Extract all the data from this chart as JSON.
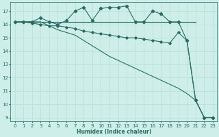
{
  "xlabel": "Humidex (Indice chaleur)",
  "bg_color": "#ceeee9",
  "grid_color": "#b8ddd8",
  "line_color": "#2a6b60",
  "xlim": [
    -0.5,
    23.5
  ],
  "ylim": [
    8.7,
    17.7
  ],
  "yticks": [
    9,
    10,
    11,
    12,
    13,
    14,
    15,
    16,
    17
  ],
  "xticks": [
    0,
    1,
    2,
    3,
    4,
    5,
    6,
    7,
    8,
    9,
    10,
    11,
    12,
    13,
    14,
    15,
    16,
    17,
    18,
    19,
    20,
    21,
    22,
    23
  ],
  "series1_x": [
    0,
    1,
    2,
    3,
    4,
    5,
    6,
    7,
    8,
    9,
    10,
    11,
    12,
    13,
    14,
    15,
    16,
    17,
    18,
    19,
    20,
    21,
    22,
    23
  ],
  "series1_y": [
    16.2,
    16.2,
    16.2,
    16.5,
    16.2,
    16.0,
    16.3,
    17.0,
    17.3,
    16.3,
    17.2,
    17.3,
    17.3,
    17.4,
    16.2,
    16.2,
    17.0,
    16.8,
    16.2,
    16.2,
    14.8,
    10.3,
    9.0,
    9.0
  ],
  "series2_x": [
    0,
    1,
    2,
    3,
    4,
    5,
    6,
    7,
    8,
    9,
    10,
    11,
    12,
    13,
    14,
    15,
    16,
    17,
    18,
    19,
    20,
    21
  ],
  "series2_y": [
    16.2,
    16.2,
    16.2,
    16.2,
    16.2,
    16.2,
    16.2,
    16.2,
    16.2,
    16.2,
    16.2,
    16.2,
    16.2,
    16.2,
    16.2,
    16.2,
    16.2,
    16.2,
    16.2,
    16.2,
    16.2,
    16.2
  ],
  "series3_x": [
    0,
    1,
    2,
    3,
    4,
    5,
    6,
    7,
    8,
    9,
    10,
    11,
    12,
    13,
    14,
    15,
    16,
    17,
    18,
    19,
    20,
    21,
    22,
    23
  ],
  "series3_y": [
    16.2,
    16.2,
    16.2,
    16.2,
    15.9,
    15.6,
    15.4,
    15.2,
    14.8,
    14.4,
    14.0,
    13.6,
    13.3,
    13.0,
    12.7,
    12.4,
    12.1,
    11.8,
    11.5,
    11.2,
    10.8,
    10.3,
    9.0,
    9.0
  ],
  "series4_x": [
    0,
    1,
    2,
    3,
    4,
    5,
    6,
    7,
    8,
    9,
    10,
    11,
    12,
    13,
    14,
    15,
    16,
    17,
    18,
    19,
    20,
    21,
    22,
    23
  ],
  "series4_y": [
    16.2,
    16.2,
    16.1,
    16.0,
    15.9,
    15.9,
    15.8,
    15.7,
    15.5,
    15.4,
    15.3,
    15.2,
    15.1,
    15.0,
    15.0,
    14.9,
    14.8,
    14.7,
    14.6,
    15.4,
    14.8,
    10.3,
    9.0,
    9.0
  ]
}
